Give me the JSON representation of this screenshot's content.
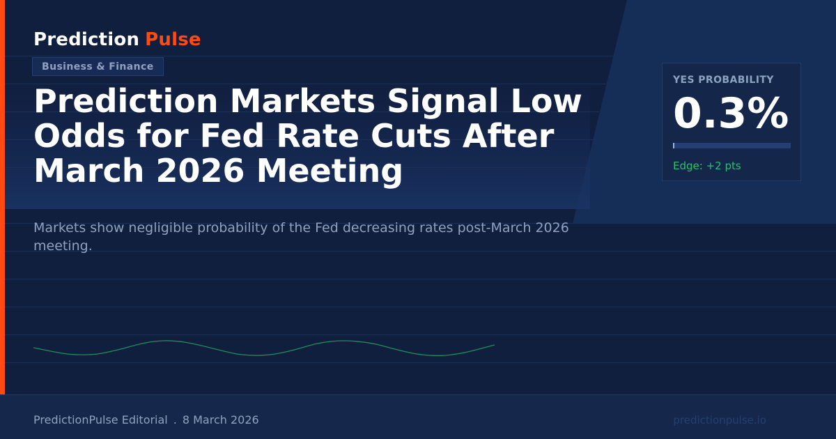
{
  "brand": {
    "name": "Prediction",
    "accent": "Pulse"
  },
  "category": "Business & Finance",
  "headline": "Prediction Markets Signal Low Odds for Fed Rate Cuts After March 2026 Meeting",
  "subtitle": "Markets show negligible probability of the Fed decreasing rates post-March 2026 meeting.",
  "probability": {
    "label": "YES PROBABILITY",
    "value_text": "0.3%",
    "value": 0.003,
    "edge": "Edge: +2 pts"
  },
  "footer": {
    "author": "PredictionPulse Editorial",
    "separator": ".",
    "date": "8 March 2026",
    "site": "predictionpulse.io"
  },
  "colors": {
    "background": "#111f3f",
    "accent": "#ff4a14",
    "positive": "#2fbf6e",
    "muted_text": "#8fa2c0"
  }
}
